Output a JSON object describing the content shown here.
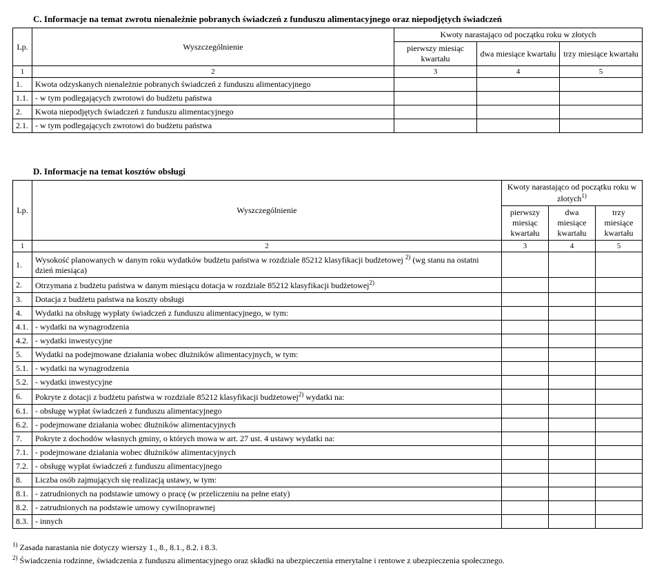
{
  "tableC": {
    "title": "C. Informacje na temat zwrotu nienależnie pobranych świadczeń z funduszu alimentacyjnego oraz niepodjętych świadczeń",
    "lpHeader": "Lp.",
    "specHeader": "Wyszczególnienie",
    "groupHeader": "Kwoty narastająco od początku roku w złotych",
    "monthHeaders": [
      "pierwszy miesiąc kwartału",
      "dwa miesiące kwartału",
      "trzy miesiące kwartału"
    ],
    "colNums": [
      "1",
      "2",
      "3",
      "4",
      "5"
    ],
    "rows": [
      {
        "lp": "1.",
        "desc": "Kwota odzyskanych nienależnie pobranych świadczeń z funduszu alimentacyjnego"
      },
      {
        "lp": "1.1.",
        "desc": "- w tym podlegających zwrotowi do budżetu państwa"
      },
      {
        "lp": "2.",
        "desc": "Kwota niepodjętych świadczeń z funduszu alimentacyjnego"
      },
      {
        "lp": "2.1.",
        "desc": "- w tym podlegających zwrotowi do budżetu państwa"
      }
    ]
  },
  "tableD": {
    "title": "D. Informacje na temat kosztów obsługi",
    "lpHeader": "Lp.",
    "specHeader": "Wyszczególnienie",
    "groupHeader_pre": "Kwoty narastająco od początku roku w złotych",
    "groupHeader_sup": "1)",
    "monthHeaders": [
      "pierwszy miesiąc kwartału",
      "dwa miesiące kwartału",
      "trzy miesiące kwartału"
    ],
    "colNums": [
      "1",
      "2",
      "3",
      "4",
      "5"
    ],
    "rows": [
      {
        "lp": "1.",
        "desc": "Wysokość planowanych w danym roku wydatków budżetu państwa w rozdziale 85212 klasyfikacji budżetowej ",
        "sup": "2)",
        "desc2": " (wg stanu na ostatni dzień miesiąca)"
      },
      {
        "lp": "2.",
        "desc": "Otrzymana z budżetu państwa w danym miesiącu dotacja w rozdziale 85212 klasyfikacji budżetowej",
        "sup": "2)"
      },
      {
        "lp": "3.",
        "desc": "Dotacja z budżetu państwa na koszty obsługi"
      },
      {
        "lp": "4.",
        "desc": "Wydatki na obsługę  wypłaty świadczeń z funduszu alimentacyjnego, w tym:"
      },
      {
        "lp": "4.1.",
        "desc": "- wydatki na wynagrodzenia"
      },
      {
        "lp": "4.2.",
        "desc": "- wydatki inwestycyjne"
      },
      {
        "lp": "5.",
        "desc": "Wydatki na podejmowane działania wobec dłużników alimentacyjnych, w tym:"
      },
      {
        "lp": "5.1.",
        "desc": "- wydatki na wynagrodzenia"
      },
      {
        "lp": "5.2.",
        "desc": "- wydatki inwestycyjne"
      },
      {
        "lp": "6.",
        "desc": "Pokryte z dotacji z budżetu państwa w rozdziale 85212 klasyfikacji budżetowej",
        "sup": "2)",
        "desc2": "  wydatki na:"
      },
      {
        "lp": "6.1.",
        "desc": "- obsługę wypłat świadczeń z funduszu alimentacyjnego"
      },
      {
        "lp": "6.2.",
        "desc": "- podejmowane działania wobec dłużników alimentacyjnych"
      },
      {
        "lp": "7.",
        "desc": "Pokryte z dochodów własnych gminy, o których mowa w art. 27 ust. 4 ustawy wydatki na:"
      },
      {
        "lp": "7.1.",
        "desc": "- podejmowane działania wobec dłużników alimentacyjnych"
      },
      {
        "lp": "7.2.",
        "desc": "- obsługę wypłat świadczeń z funduszu alimentacyjnego"
      },
      {
        "lp": "8.",
        "desc": "Liczba osób zajmujących się realizacją ustawy, w tym:"
      },
      {
        "lp": "8.1.",
        "desc": "- zatrudnionych na podstawie umowy o pracę (w przeliczeniu na pełne etaty)"
      },
      {
        "lp": "8.2.",
        "desc": "- zatrudnionych na podstawie umowy cywilnoprawnej"
      },
      {
        "lp": "8.3.",
        "desc": "- innych"
      }
    ]
  },
  "footnotes": {
    "n1_sup": "1)",
    "n1": " Zasada narastania nie dotyczy wierszy 1., 8., 8.1., 8.2. i 8.3.",
    "n2_sup": "2)",
    "n2": " Świadczenia rodzinne, świadczenia z funduszu alimentacyjnego oraz składki na ubezpieczenia emerytalne i rentowe z ubezpieczenia społecznego."
  }
}
